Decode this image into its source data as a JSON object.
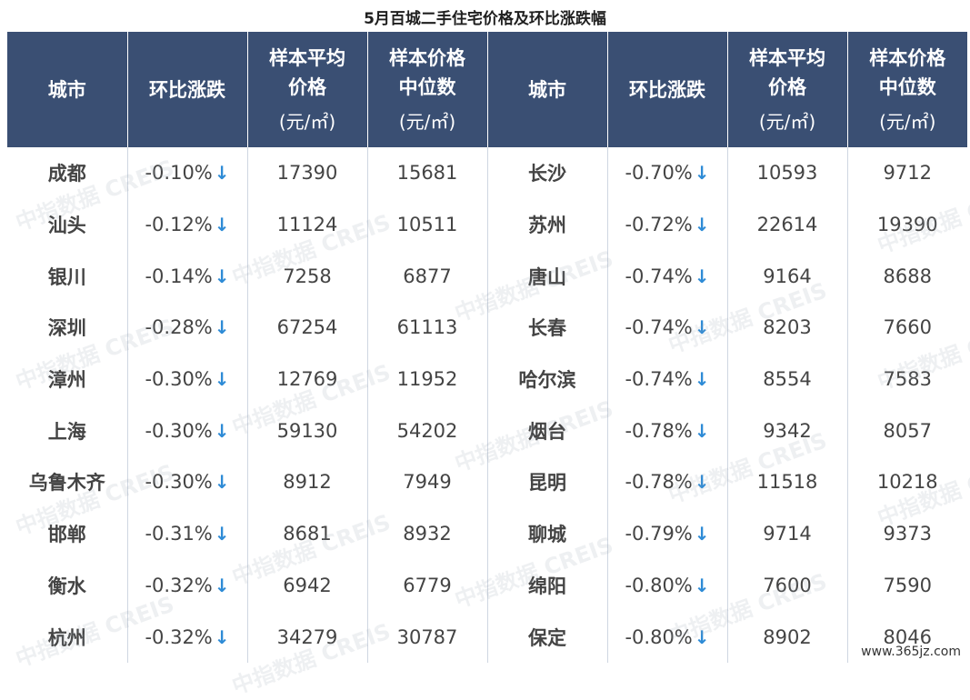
{
  "title": "5月百城二手住宅价格及环比涨跌幅",
  "headers": {
    "city": "城市",
    "change": "环比涨跌",
    "avg_line1": "样本平均",
    "avg_line2": "价格",
    "median_line1": "样本价格",
    "median_line2": "中位数",
    "unit": "(元/㎡)"
  },
  "arrow_glyph": "↓",
  "arrow_color": "#2e8bd6",
  "header_color": "#3a4f73",
  "rows": [
    {
      "l": {
        "city": "成都",
        "change": "-0.10%",
        "avg": "17390",
        "median": "15681"
      },
      "r": {
        "city": "长沙",
        "change": "-0.70%",
        "avg": "10593",
        "median": "9712"
      }
    },
    {
      "l": {
        "city": "汕头",
        "change": "-0.12%",
        "avg": "11124",
        "median": "10511"
      },
      "r": {
        "city": "苏州",
        "change": "-0.72%",
        "avg": "22614",
        "median": "19390"
      }
    },
    {
      "l": {
        "city": "银川",
        "change": "-0.14%",
        "avg": "7258",
        "median": "6877"
      },
      "r": {
        "city": "唐山",
        "change": "-0.74%",
        "avg": "9164",
        "median": "8688"
      }
    },
    {
      "l": {
        "city": "深圳",
        "change": "-0.28%",
        "avg": "67254",
        "median": "61113"
      },
      "r": {
        "city": "长春",
        "change": "-0.74%",
        "avg": "8203",
        "median": "7660"
      }
    },
    {
      "l": {
        "city": "漳州",
        "change": "-0.30%",
        "avg": "12769",
        "median": "11952"
      },
      "r": {
        "city": "哈尔滨",
        "change": "-0.74%",
        "avg": "8554",
        "median": "7583"
      }
    },
    {
      "l": {
        "city": "上海",
        "change": "-0.30%",
        "avg": "59130",
        "median": "54202"
      },
      "r": {
        "city": "烟台",
        "change": "-0.78%",
        "avg": "9342",
        "median": "8057"
      }
    },
    {
      "l": {
        "city": "乌鲁木齐",
        "change": "-0.30%",
        "avg": "8912",
        "median": "7949"
      },
      "r": {
        "city": "昆明",
        "change": "-0.78%",
        "avg": "11518",
        "median": "10218"
      }
    },
    {
      "l": {
        "city": "邯郸",
        "change": "-0.31%",
        "avg": "8681",
        "median": "8932"
      },
      "r": {
        "city": "聊城",
        "change": "-0.79%",
        "avg": "9714",
        "median": "9373"
      }
    },
    {
      "l": {
        "city": "衡水",
        "change": "-0.32%",
        "avg": "6942",
        "median": "6779"
      },
      "r": {
        "city": "绵阳",
        "change": "-0.80%",
        "avg": "7600",
        "median": "7590"
      }
    },
    {
      "l": {
        "city": "杭州",
        "change": "-0.32%",
        "avg": "34279",
        "median": "30787"
      },
      "r": {
        "city": "保定",
        "change": "-0.80%",
        "avg": "8902",
        "median": "8046"
      }
    }
  ],
  "watermark": "中指数据 CREIS",
  "site": "www.365jz.com"
}
